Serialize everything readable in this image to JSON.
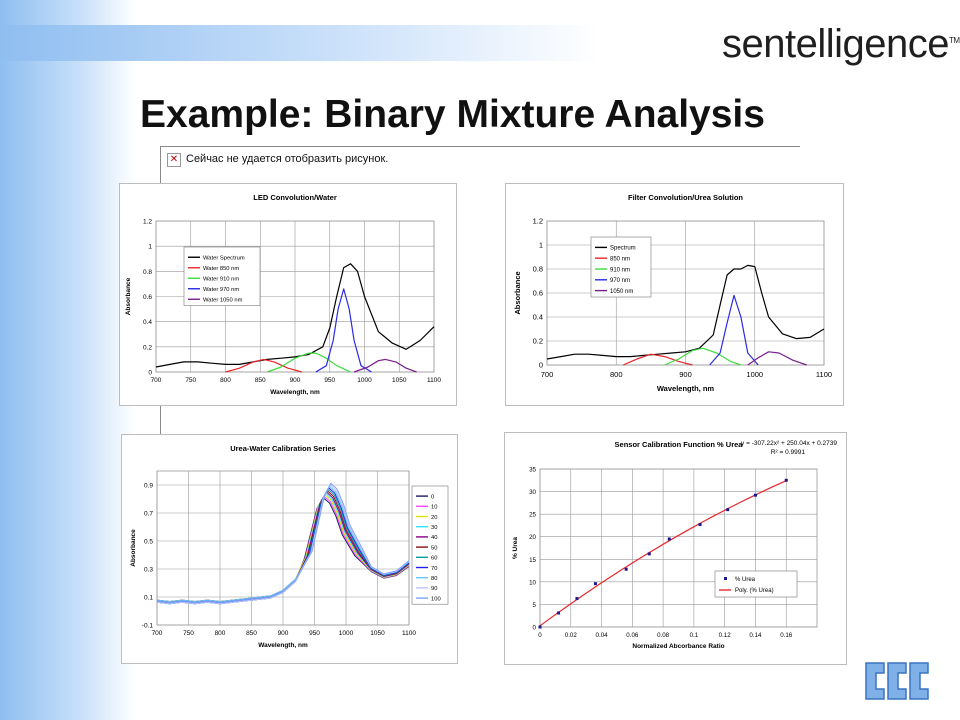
{
  "slide": {
    "logo": "sentelligence",
    "logo_tm": "TM",
    "title": "Example: Binary Mixture Analysis",
    "broken_image_text": "Сейчас не удается отобразить рисунок."
  },
  "colors": {
    "black": "#000000",
    "red": "#e8262b",
    "green": "#3cdc3c",
    "blue": "#2a2ae6",
    "purple": "#7a1e8c"
  },
  "chart_data": [
    {
      "type": "line",
      "title": "LED Convolution/Water",
      "xlabel": "Wavelength, nm",
      "ylabel": "Absorbance",
      "xlim": [
        700,
        1100
      ],
      "ylim": [
        0,
        1.2
      ],
      "xticks": [
        700,
        750,
        800,
        850,
        900,
        950,
        1000,
        1050,
        1100
      ],
      "yticks": [
        0,
        0.2,
        0.4,
        0.6,
        0.8,
        1,
        1.2
      ],
      "grid": true,
      "legend": "upper-left",
      "series": [
        {
          "name": "Water Spectrum",
          "color": "#000000",
          "x": [
            700,
            720,
            740,
            760,
            780,
            800,
            820,
            840,
            860,
            880,
            900,
            920,
            940,
            950,
            960,
            970,
            980,
            990,
            1000,
            1020,
            1040,
            1060,
            1080,
            1100
          ],
          "y": [
            0.04,
            0.06,
            0.08,
            0.08,
            0.07,
            0.06,
            0.06,
            0.08,
            0.1,
            0.11,
            0.12,
            0.14,
            0.2,
            0.35,
            0.6,
            0.83,
            0.86,
            0.8,
            0.6,
            0.32,
            0.23,
            0.18,
            0.25,
            0.36
          ]
        },
        {
          "name": "Water 850 nm",
          "color": "#e8262b",
          "x": [
            800,
            820,
            840,
            855,
            870,
            890,
            910
          ],
          "y": [
            0,
            0.03,
            0.08,
            0.1,
            0.08,
            0.03,
            0
          ]
        },
        {
          "name": "Water 910 nm",
          "color": "#3cdc3c",
          "x": [
            860,
            880,
            900,
            920,
            930,
            945,
            960,
            980
          ],
          "y": [
            0,
            0.04,
            0.11,
            0.15,
            0.15,
            0.11,
            0.05,
            0
          ]
        },
        {
          "name": "Water 970 nm",
          "color": "#2a2ae6",
          "x": [
            930,
            945,
            955,
            962,
            970,
            978,
            985,
            995,
            1010
          ],
          "y": [
            0,
            0.05,
            0.25,
            0.5,
            0.66,
            0.5,
            0.25,
            0.05,
            0
          ]
        },
        {
          "name": "Water 1050 nm",
          "color": "#7a1e8c",
          "x": [
            985,
            1005,
            1020,
            1030,
            1045,
            1060,
            1075
          ],
          "y": [
            0,
            0.04,
            0.09,
            0.1,
            0.08,
            0.03,
            0
          ]
        }
      ]
    },
    {
      "type": "line",
      "title": "Filter Convolution/Urea Solution",
      "xlabel": "Wavelength, nm",
      "ylabel": "Absorbance",
      "xlim": [
        700,
        1100
      ],
      "ylim": [
        0,
        1.2
      ],
      "xticks": [
        700,
        800,
        900,
        1000,
        1100
      ],
      "yticks": [
        0,
        0.2,
        0.4,
        0.6,
        0.8,
        1,
        1.2
      ],
      "grid": true,
      "legend": "upper-left",
      "series": [
        {
          "name": "Spectrum",
          "color": "#000000",
          "x": [
            700,
            720,
            740,
            760,
            780,
            800,
            820,
            840,
            860,
            880,
            900,
            920,
            940,
            950,
            960,
            970,
            980,
            990,
            1000,
            1010,
            1020,
            1040,
            1060,
            1080,
            1100
          ],
          "y": [
            0.05,
            0.07,
            0.09,
            0.09,
            0.08,
            0.07,
            0.07,
            0.08,
            0.09,
            0.1,
            0.11,
            0.14,
            0.25,
            0.5,
            0.75,
            0.8,
            0.8,
            0.83,
            0.82,
            0.6,
            0.4,
            0.26,
            0.22,
            0.23,
            0.3
          ]
        },
        {
          "name": "850 nm",
          "color": "#e8262b",
          "x": [
            810,
            830,
            850,
            870,
            890,
            910
          ],
          "y": [
            0,
            0.05,
            0.09,
            0.07,
            0.03,
            0
          ]
        },
        {
          "name": "910 nm",
          "color": "#3cdc3c",
          "x": [
            870,
            890,
            910,
            925,
            945,
            965,
            980
          ],
          "y": [
            0,
            0.05,
            0.12,
            0.14,
            0.1,
            0.03,
            0
          ]
        },
        {
          "name": "970 nm",
          "color": "#2a2ae6",
          "x": [
            935,
            950,
            960,
            970,
            980,
            990,
            1005
          ],
          "y": [
            0,
            0.1,
            0.35,
            0.58,
            0.4,
            0.1,
            0
          ]
        },
        {
          "name": "1050 nm",
          "color": "#7a1e8c",
          "x": [
            990,
            1005,
            1020,
            1035,
            1055,
            1075
          ],
          "y": [
            0,
            0.06,
            0.11,
            0.1,
            0.04,
            0
          ]
        }
      ]
    },
    {
      "type": "line",
      "title": "Urea-Water Calibration Series",
      "xlabel": "Wavelength, nm",
      "ylabel": "Absorbance",
      "xlim": [
        700,
        1100
      ],
      "ylim": [
        -0.1,
        1.0
      ],
      "xticks": [
        700,
        750,
        800,
        850,
        900,
        950,
        1000,
        1050,
        1100
      ],
      "yticks": [
        -0.1,
        0.1,
        0.3,
        0.5,
        0.7,
        0.9
      ],
      "grid": true,
      "legend": "right",
      "legend_entries": [
        "0",
        "10",
        "20",
        "30",
        "40",
        "50",
        "60",
        "70",
        "80",
        "90",
        "100"
      ],
      "series_colors": [
        "#1a1a6e",
        "#ff44ff",
        "#e0e000",
        "#30e0ff",
        "#8a008a",
        "#8a1010",
        "#00a0a0",
        "#2020ff",
        "#60c8ff",
        "#c0c0ff",
        "#80a0ff"
      ],
      "x": [
        700,
        720,
        740,
        760,
        780,
        800,
        820,
        840,
        860,
        880,
        900,
        920,
        940,
        960,
        970,
        980,
        990,
        1000,
        1020,
        1040,
        1060,
        1080,
        1100
      ],
      "base_y": [
        0.07,
        0.06,
        0.07,
        0.06,
        0.07,
        0.06,
        0.07,
        0.08,
        0.09,
        0.1,
        0.14,
        0.22,
        0.4,
        0.78,
        0.86,
        0.82,
        0.72,
        0.58,
        0.42,
        0.3,
        0.25,
        0.27,
        0.34
      ]
    },
    {
      "type": "scatter",
      "title": "Sensor Calibration Function % Urea",
      "annotation": [
        "y = -307.22x² + 250.04x + 0.2739",
        "R² = 0.9991"
      ],
      "xlabel": "Normalized Abcorbance Ratio",
      "ylabel": "% Urea",
      "xlim": [
        0,
        0.18
      ],
      "ylim": [
        0,
        35
      ],
      "xticks": [
        0,
        0.02,
        0.04,
        0.06,
        0.08,
        0.1,
        0.12,
        0.14,
        0.16
      ],
      "yticks": [
        0,
        5,
        10,
        15,
        20,
        25,
        30,
        35
      ],
      "grid": true,
      "legend": "lower-right",
      "series": [
        {
          "name": "% Urea",
          "color": "#1a1a8c",
          "x": [
            0,
            0.012,
            0.024,
            0.036,
            0.056,
            0.071,
            0.084,
            0.104,
            0.122,
            0.14,
            0.16
          ],
          "y": [
            0,
            3.1,
            6.3,
            9.6,
            12.8,
            16.2,
            19.5,
            22.7,
            26,
            29.2,
            32.5
          ]
        },
        {
          "name": "Poly. (% Urea)",
          "color": "#e8262b",
          "fit": [
            -307.22,
            250.04,
            0.2739
          ]
        }
      ]
    }
  ]
}
